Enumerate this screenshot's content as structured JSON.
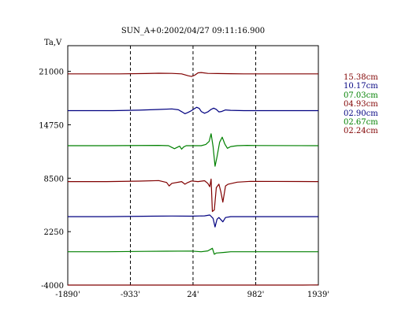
{
  "chart_data": {
    "type": "line",
    "title": "SUN_A+0:2002/04/27 09:11:16.900",
    "ylabel": "Ta,V",
    "xlabel": "",
    "xlim": [
      -1890,
      1939
    ],
    "ylim": [
      -4000,
      24000
    ],
    "x_ticks": [
      -1890,
      -933,
      24,
      982,
      1939
    ],
    "x_tick_labels": [
      "-1890'",
      "-933'",
      "24'",
      "982'",
      "1939'"
    ],
    "y_ticks": [
      -4000,
      2250,
      8500,
      14750,
      21000
    ],
    "y_tick_labels": [
      "-4000",
      "2250",
      "8500",
      "14750",
      "21000"
    ],
    "x_dashed_lines": [
      -933,
      24,
      982
    ],
    "grid": false,
    "legend_position": "right",
    "series": [
      {
        "name": "15.38cm",
        "color": "#800000",
        "baseline": 20700,
        "points": [
          [
            -1890,
            0
          ],
          [
            -1100,
            0
          ],
          [
            -700,
            40
          ],
          [
            -500,
            80
          ],
          [
            -300,
            60
          ],
          [
            -150,
            0
          ],
          [
            -50,
            -220
          ],
          [
            0,
            -300
          ],
          [
            50,
            -150
          ],
          [
            100,
            120
          ],
          [
            150,
            160
          ],
          [
            250,
            60
          ],
          [
            400,
            40
          ],
          [
            600,
            20
          ],
          [
            800,
            0
          ],
          [
            1939,
            0
          ]
        ]
      },
      {
        "name": "10.17cm",
        "color": "#000080",
        "baseline": 16400,
        "points": [
          [
            -1890,
            0
          ],
          [
            -1200,
            0
          ],
          [
            -800,
            60
          ],
          [
            -500,
            140
          ],
          [
            -300,
            200
          ],
          [
            -200,
            100
          ],
          [
            -150,
            -120
          ],
          [
            -100,
            -360
          ],
          [
            -50,
            -200
          ],
          [
            0,
            0
          ],
          [
            40,
            200
          ],
          [
            80,
            400
          ],
          [
            120,
            260
          ],
          [
            150,
            -100
          ],
          [
            200,
            -300
          ],
          [
            250,
            -150
          ],
          [
            300,
            150
          ],
          [
            340,
            300
          ],
          [
            380,
            150
          ],
          [
            420,
            -150
          ],
          [
            460,
            -100
          ],
          [
            520,
            80
          ],
          [
            600,
            40
          ],
          [
            800,
            0
          ],
          [
            1939,
            0
          ]
        ]
      },
      {
        "name": "07.03cm",
        "color": "#008000",
        "baseline": 12300,
        "points": [
          [
            -1890,
            0
          ],
          [
            -1300,
            0
          ],
          [
            -500,
            40
          ],
          [
            -350,
            0
          ],
          [
            -300,
            -200
          ],
          [
            -260,
            -350
          ],
          [
            -220,
            -200
          ],
          [
            -180,
            -50
          ],
          [
            -150,
            -400
          ],
          [
            -120,
            -150
          ],
          [
            -80,
            0
          ],
          [
            0,
            0
          ],
          [
            150,
            0
          ],
          [
            220,
            150
          ],
          [
            270,
            500
          ],
          [
            300,
            1400
          ],
          [
            330,
            -100
          ],
          [
            360,
            -2400
          ],
          [
            390,
            -1300
          ],
          [
            430,
            400
          ],
          [
            470,
            1000
          ],
          [
            510,
            200
          ],
          [
            550,
            -300
          ],
          [
            600,
            -100
          ],
          [
            700,
            0
          ],
          [
            850,
            40
          ],
          [
            1000,
            20
          ],
          [
            1939,
            0
          ]
        ]
      },
      {
        "name": "04.93cm",
        "color": "#800000",
        "baseline": 8100,
        "points": [
          [
            -1890,
            0
          ],
          [
            -1300,
            0
          ],
          [
            -800,
            60
          ],
          [
            -500,
            120
          ],
          [
            -380,
            -100
          ],
          [
            -340,
            -500
          ],
          [
            -300,
            -200
          ],
          [
            -150,
            0
          ],
          [
            -100,
            -300
          ],
          [
            -60,
            -120
          ],
          [
            0,
            80
          ],
          [
            100,
            0
          ],
          [
            200,
            100
          ],
          [
            250,
            -200
          ],
          [
            280,
            -600
          ],
          [
            300,
            300
          ],
          [
            320,
            -3500
          ],
          [
            350,
            -3300
          ],
          [
            380,
            -700
          ],
          [
            420,
            -300
          ],
          [
            450,
            -1200
          ],
          [
            480,
            -2400
          ],
          [
            520,
            -500
          ],
          [
            560,
            -300
          ],
          [
            700,
            -60
          ],
          [
            900,
            30
          ],
          [
            1939,
            0
          ]
        ]
      },
      {
        "name": "02.90cm",
        "color": "#000080",
        "baseline": 4000,
        "points": [
          [
            -1890,
            0
          ],
          [
            -1300,
            0
          ],
          [
            -600,
            60
          ],
          [
            -300,
            80
          ],
          [
            0,
            60
          ],
          [
            200,
            100
          ],
          [
            280,
            200
          ],
          [
            330,
            -200
          ],
          [
            360,
            -1200
          ],
          [
            390,
            -300
          ],
          [
            420,
            -100
          ],
          [
            480,
            -600
          ],
          [
            520,
            -100
          ],
          [
            600,
            0
          ],
          [
            1939,
            0
          ]
        ]
      },
      {
        "name": "02.67cm",
        "color": "#008000",
        "baseline": -100,
        "points": [
          [
            -1890,
            0
          ],
          [
            -1300,
            0
          ],
          [
            -700,
            40
          ],
          [
            -400,
            60
          ],
          [
            0,
            80
          ],
          [
            150,
            0
          ],
          [
            250,
            100
          ],
          [
            320,
            400
          ],
          [
            350,
            -300
          ],
          [
            380,
            -150
          ],
          [
            500,
            -80
          ],
          [
            600,
            0
          ],
          [
            1939,
            0
          ]
        ]
      },
      {
        "name": "02.24cm",
        "color": "#800000",
        "baseline": -4200,
        "points": [
          [
            -1890,
            0
          ],
          [
            -1300,
            0
          ],
          [
            -400,
            40
          ],
          [
            -100,
            60
          ],
          [
            0,
            120
          ],
          [
            100,
            80
          ],
          [
            200,
            -100
          ],
          [
            300,
            -200
          ],
          [
            350,
            -80
          ],
          [
            500,
            100
          ],
          [
            700,
            80
          ],
          [
            900,
            140
          ],
          [
            1100,
            140
          ],
          [
            1300,
            200
          ],
          [
            1500,
            180
          ],
          [
            1700,
            200
          ],
          [
            1939,
            220
          ]
        ]
      }
    ]
  }
}
